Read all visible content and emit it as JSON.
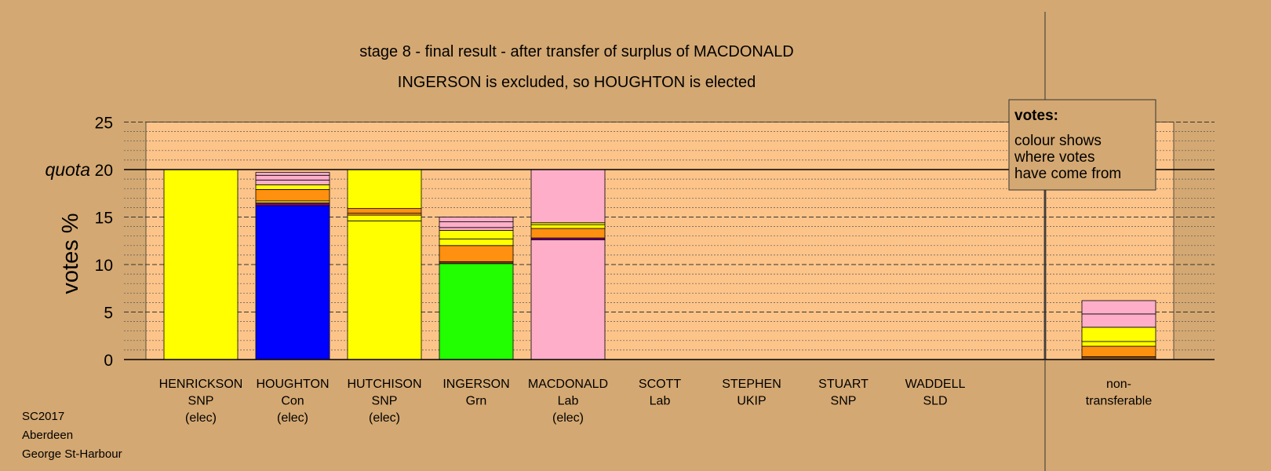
{
  "title": "stage 8 - final result - after transfer of surplus of MACDONALD",
  "subtitle": "INGERSON is excluded, so HOUGHTON is elected",
  "footer": [
    "SC2017",
    "Aberdeen",
    "George St-Harbour"
  ],
  "legend": {
    "heading": "votes:",
    "lines": [
      "colour shows",
      "where votes",
      "have come from"
    ]
  },
  "colors": {
    "SNP": "#ffff00",
    "Con": "#0000ff",
    "Grn": "#22ff00",
    "Lab": "#ffaec9",
    "orange": "#ff9010",
    "purple": "#800080",
    "brown": "#8a4a10",
    "plot_bg": "#fdc48a",
    "page_bg": "#d4a872"
  },
  "chart_data": {
    "type": "bar",
    "stacked": true,
    "ylabel": "votes %",
    "ylim": [
      0,
      25
    ],
    "yticks": [
      0,
      5,
      10,
      15,
      20,
      25
    ],
    "quota": {
      "label": "quota",
      "value": 20
    },
    "grid": true,
    "categories": [
      {
        "lines": [
          "HENRICKSON",
          "SNP",
          "(elec)"
        ],
        "segments": [
          {
            "color": "SNP",
            "value": 20
          }
        ]
      },
      {
        "lines": [
          "HOUGHTON",
          "Con",
          "(elec)"
        ],
        "segments": [
          {
            "color": "Con",
            "value": 16.2
          },
          {
            "color": "purple",
            "value": 0.3
          },
          {
            "color": "SNP",
            "value": 0.2
          },
          {
            "color": "orange",
            "value": 1.2
          },
          {
            "color": "SNP",
            "value": 0.5
          },
          {
            "color": "Lab",
            "value": 0.5
          },
          {
            "color": "Lab",
            "value": 0.5
          },
          {
            "color": "Lab",
            "value": 0.3
          }
        ]
      },
      {
        "lines": [
          "HUTCHISON",
          "SNP",
          "(elec)"
        ],
        "segments": [
          {
            "color": "SNP",
            "value": 14.6
          },
          {
            "color": "SNP",
            "value": 0.6
          },
          {
            "color": "orange",
            "value": 0.2
          },
          {
            "color": "orange",
            "value": 0.5
          },
          {
            "color": "SNP",
            "value": 4.1
          }
        ]
      },
      {
        "lines": [
          "INGERSON",
          "Grn"
        ],
        "segments": [
          {
            "color": "Grn",
            "value": 10.1
          },
          {
            "color": "brown",
            "value": 0.2
          },
          {
            "color": "orange",
            "value": 1.7
          },
          {
            "color": "SNP",
            "value": 0.7
          },
          {
            "color": "SNP",
            "value": 0.9
          },
          {
            "color": "Lab",
            "value": 0.3
          },
          {
            "color": "Lab",
            "value": 0.6
          },
          {
            "color": "Lab",
            "value": 0.5
          }
        ]
      },
      {
        "lines": [
          "MACDONALD",
          "Lab",
          "(elec)"
        ],
        "segments": [
          {
            "color": "Lab",
            "value": 12.6
          },
          {
            "color": "purple",
            "value": 0.2
          },
          {
            "color": "orange",
            "value": 1.0
          },
          {
            "color": "SNP",
            "value": 0.4
          },
          {
            "color": "SNP",
            "value": 0.2
          },
          {
            "color": "Lab",
            "value": 5.6
          }
        ]
      },
      {
        "lines": [
          "SCOTT",
          "Lab"
        ],
        "segments": []
      },
      {
        "lines": [
          "STEPHEN",
          "UKIP"
        ],
        "segments": []
      },
      {
        "lines": [
          "STUART",
          "SNP"
        ],
        "segments": []
      },
      {
        "lines": [
          "WADDELL",
          "SLD"
        ],
        "segments": []
      }
    ],
    "nontransferable": {
      "lines": [
        "non-",
        "transferable"
      ],
      "segments": [
        {
          "color": "brown",
          "value": 0.3
        },
        {
          "color": "orange",
          "value": 1.1
        },
        {
          "color": "SNP",
          "value": 0.5
        },
        {
          "color": "SNP",
          "value": 1.5
        },
        {
          "color": "Lab",
          "value": 1.4
        },
        {
          "color": "Lab",
          "value": 1.4
        }
      ]
    }
  }
}
